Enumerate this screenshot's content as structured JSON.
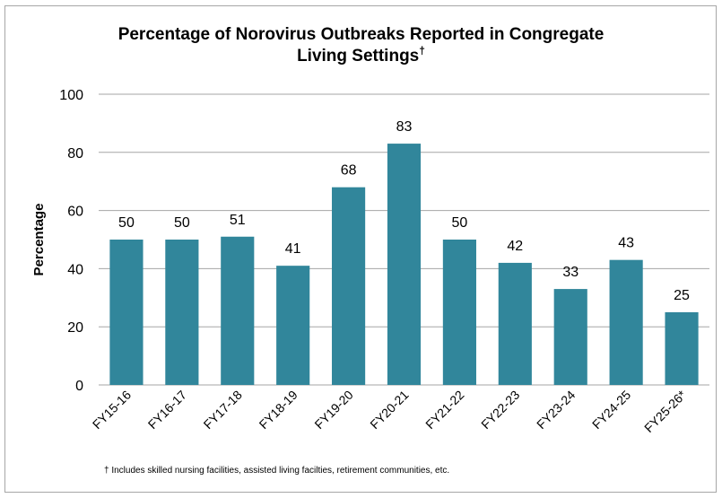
{
  "chart_data": {
    "type": "bar",
    "title_line1": "Percentage of Norovirus Outbreaks Reported in Congregate",
    "title_line2": "Living Settings",
    "title_marker": "†",
    "ylabel": "Percentage",
    "xlabel": "",
    "categories": [
      "FY15-16",
      "FY16-17",
      "FY17-18",
      "FY18-19",
      "FY19-20",
      "FY20-21",
      "FY21-22",
      "FY22-23",
      "FY23-24",
      "FY24-25",
      "FY25-26*"
    ],
    "values": [
      50,
      50,
      51,
      41,
      68,
      83,
      50,
      42,
      33,
      43,
      25
    ],
    "ylim": [
      0,
      100
    ],
    "yticks": [
      0,
      20,
      40,
      60,
      80,
      100
    ],
    "grid": true,
    "legend": "none",
    "bar_color": "#31869b",
    "footnote": "† Includes skilled nursing facilities, assisted living facilties, retirement communities, etc."
  }
}
